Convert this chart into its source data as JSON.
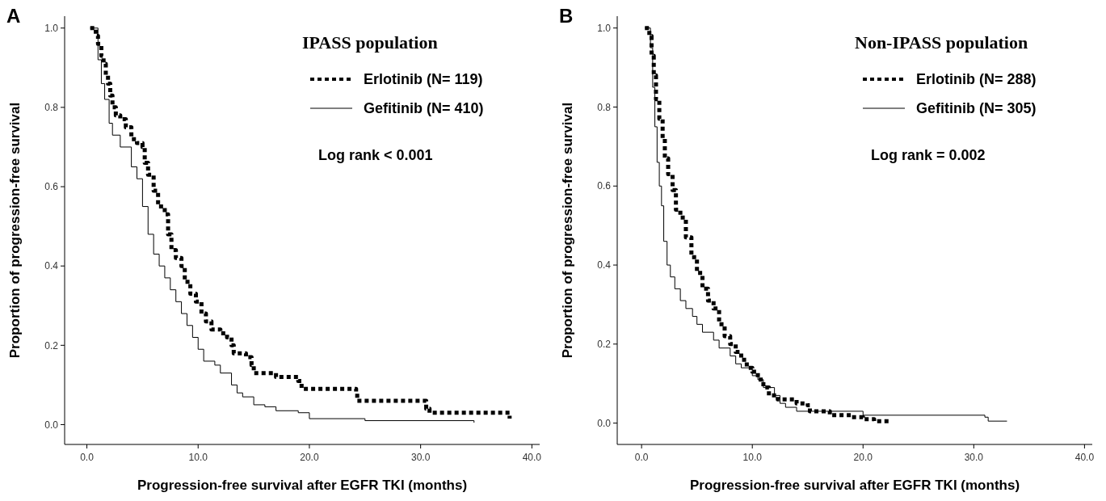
{
  "chart_data": [
    {
      "type": "step",
      "xlabel": "Progression-free survival after EGFR TKI (months)",
      "ylabel": "Proportion of progression-free survival",
      "legend_title": "IPASS population",
      "legend": "top right",
      "annotations": [
        "A",
        "Log rank < 0.001"
      ],
      "xlim": [
        -2,
        40.7
      ],
      "ylim": [
        -0.05,
        1.03
      ],
      "xticks": [
        {
          "value": 0,
          "label": "0.0"
        },
        {
          "value": 10,
          "label": "10.0"
        },
        {
          "value": 20,
          "label": "20.0"
        },
        {
          "value": 30,
          "label": "30.0"
        },
        {
          "value": 40,
          "label": "40.0"
        }
      ],
      "yticks": [
        {
          "value": 0,
          "label": "0.0"
        },
        {
          "value": 0.2,
          "label": "0.2"
        },
        {
          "value": 0.4,
          "label": "0.4"
        },
        {
          "value": 0.6,
          "label": "0.6"
        },
        {
          "value": 0.8,
          "label": "0.8"
        },
        {
          "value": 1,
          "label": "1.0"
        }
      ],
      "series": [
        {
          "name": "Erlotinib (N= 119)",
          "color": "#000000",
          "line_style": "dotted",
          "x": [
            0.3,
            0.8,
            1.0,
            1.3,
            1.5,
            1.7,
            1.9,
            2.1,
            2.3,
            2.6,
            3.0,
            3.5,
            4.0,
            4.5,
            5.0,
            5.2,
            5.5,
            6.0,
            6.4,
            7.0,
            7.3,
            7.6,
            8.0,
            8.5,
            8.8,
            9.3,
            9.8,
            10.3,
            10.7,
            11.2,
            12.0,
            12.6,
            13.0,
            13.2,
            14.3,
            14.8,
            15.0,
            17.0,
            19.0,
            19.3,
            24.2,
            24.3,
            30.0,
            30.5,
            30.8,
            37.8,
            38.0
          ],
          "values": [
            1.0,
            0.98,
            0.96,
            0.93,
            0.91,
            0.88,
            0.86,
            0.83,
            0.8,
            0.78,
            0.77,
            0.75,
            0.72,
            0.71,
            0.7,
            0.66,
            0.63,
            0.59,
            0.55,
            0.53,
            0.48,
            0.44,
            0.42,
            0.4,
            0.36,
            0.33,
            0.31,
            0.28,
            0.26,
            0.24,
            0.23,
            0.22,
            0.2,
            0.18,
            0.17,
            0.15,
            0.13,
            0.12,
            0.11,
            0.09,
            0.08,
            0.06,
            0.06,
            0.04,
            0.03,
            0.03,
            0.015
          ]
        },
        {
          "name": "Gefitinib (N= 410)",
          "color": "#000000",
          "line_style": "solid",
          "x": [
            0.3,
            1.0,
            1.3,
            1.6,
            2.0,
            2.3,
            3.0,
            4.0,
            4.5,
            5.0,
            5.5,
            6.0,
            6.5,
            7.0,
            7.5,
            8.0,
            8.5,
            9.0,
            9.5,
            10.0,
            10.5,
            11.5,
            12.0,
            13.0,
            13.5,
            14.0,
            15.0,
            16.0,
            17.0,
            19.0,
            20.0,
            25.0,
            34.8
          ],
          "values": [
            1.0,
            0.92,
            0.86,
            0.82,
            0.76,
            0.73,
            0.7,
            0.65,
            0.62,
            0.55,
            0.48,
            0.43,
            0.4,
            0.37,
            0.34,
            0.31,
            0.28,
            0.25,
            0.22,
            0.19,
            0.16,
            0.15,
            0.13,
            0.1,
            0.08,
            0.07,
            0.05,
            0.045,
            0.035,
            0.03,
            0.015,
            0.01,
            0.005
          ]
        }
      ]
    },
    {
      "type": "step",
      "xlabel": "Progression-free survival after EGFR TKI (months)",
      "ylabel": "Proportion of progression-free survival",
      "legend_title": "Non-IPASS population",
      "legend": "top right",
      "annotations": [
        "B",
        "Log rank = 0.002"
      ],
      "xlim": [
        -2.2,
        40.7
      ],
      "ylim": [
        -0.054,
        1.03
      ],
      "xticks": [
        {
          "value": 0,
          "label": "0.0"
        },
        {
          "value": 10,
          "label": "10.0"
        },
        {
          "value": 20,
          "label": "20.0"
        },
        {
          "value": 30,
          "label": "30.0"
        },
        {
          "value": 40,
          "label": "40.0"
        }
      ],
      "yticks": [
        {
          "value": 0,
          "label": "0.0"
        },
        {
          "value": 0.2,
          "label": "0.2"
        },
        {
          "value": 0.4,
          "label": "0.4"
        },
        {
          "value": 0.6,
          "label": "0.6"
        },
        {
          "value": 0.8,
          "label": "0.8"
        },
        {
          "value": 1,
          "label": "1.0"
        }
      ],
      "series": [
        {
          "name": "Erlotinib (N= 288)",
          "color": "#000000",
          "line_style": "dotted",
          "x": [
            0.3,
            0.7,
            0.9,
            1.1,
            1.3,
            1.6,
            1.9,
            2.1,
            2.4,
            2.8,
            3.1,
            3.5,
            4.0,
            4.5,
            5.0,
            5.5,
            6.0,
            6.5,
            7.0,
            7.5,
            8.0,
            8.5,
            9.0,
            9.5,
            10.0,
            10.5,
            11.0,
            11.5,
            12.3,
            14.0,
            15.0,
            15.2,
            17.0,
            19.0,
            20.0,
            21.0,
            22.5
          ],
          "values": [
            1.0,
            0.98,
            0.93,
            0.88,
            0.82,
            0.77,
            0.72,
            0.67,
            0.63,
            0.59,
            0.54,
            0.52,
            0.47,
            0.42,
            0.38,
            0.34,
            0.31,
            0.29,
            0.25,
            0.22,
            0.2,
            0.18,
            0.16,
            0.14,
            0.13,
            0.11,
            0.09,
            0.07,
            0.06,
            0.05,
            0.045,
            0.03,
            0.02,
            0.015,
            0.01,
            0.005,
            0.005
          ]
        },
        {
          "name": "Gefitinib (N= 305)",
          "color": "#000000",
          "line_style": "solid",
          "x": [
            0.3,
            0.8,
            1.0,
            1.2,
            1.4,
            1.6,
            1.8,
            2.0,
            2.3,
            2.6,
            3.0,
            3.5,
            4.0,
            4.6,
            5.0,
            5.5,
            6.5,
            7.0,
            8.0,
            8.5,
            9.0,
            10.0,
            10.5,
            11.0,
            12.0,
            12.5,
            13.0,
            14.0,
            20.0,
            31.0,
            31.3,
            33.0
          ],
          "values": [
            1.0,
            0.95,
            0.85,
            0.75,
            0.66,
            0.6,
            0.55,
            0.46,
            0.4,
            0.37,
            0.34,
            0.31,
            0.29,
            0.27,
            0.25,
            0.23,
            0.21,
            0.19,
            0.17,
            0.15,
            0.14,
            0.12,
            0.11,
            0.09,
            0.07,
            0.05,
            0.04,
            0.03,
            0.02,
            0.015,
            0.005,
            0.005
          ]
        }
      ]
    }
  ]
}
